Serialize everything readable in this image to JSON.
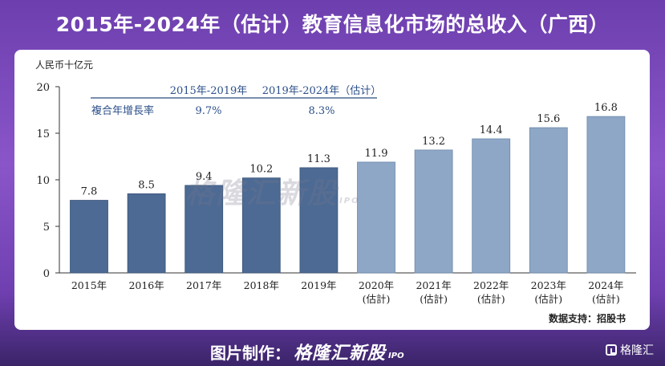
{
  "title": "2015年-2024年（估计）教育信息化市场的总收入（广西）",
  "unit_label": "人民币十亿元",
  "legend": {
    "period1": "2015年-2019年",
    "period2": "2019年-2024年（估计）",
    "row_label": "複合年增長率",
    "cagr1": "9.7%",
    "cagr2": "8.3%"
  },
  "watermark": "格隆汇新股",
  "watermark_ipo": "IPO",
  "source": "数据支持：招股书",
  "footer": {
    "prefix": "图片制作：",
    "brand": "格隆汇新股",
    "ipo": "IPO",
    "logo_text": "格隆汇"
  },
  "colors": {
    "actual": "#4c6a93",
    "estimate": "#8ea7c6"
  },
  "chart_data": {
    "type": "bar",
    "title": "2015年-2024年（估计）教育信息化市场的总收入（广西）",
    "ylabel": "人民币十亿元",
    "xlabel": "",
    "ylim": [
      0,
      20
    ],
    "yticks": [
      0,
      5,
      10,
      15,
      20
    ],
    "categories": [
      "2015年",
      "2016年",
      "2017年",
      "2018年",
      "2019年",
      "2020年",
      "2021年",
      "2022年",
      "2023年",
      "2024年"
    ],
    "category_sublabels": [
      "",
      "",
      "",
      "",
      "",
      "(估計)",
      "(估計)",
      "(估計)",
      "(估計)",
      "(估計)"
    ],
    "values": [
      7.8,
      8.5,
      9.4,
      10.2,
      11.3,
      11.9,
      13.2,
      14.4,
      15.6,
      16.8
    ],
    "value_labels": [
      "7.8",
      "8.5",
      "9.4",
      "10.2",
      "11.3",
      "11.9",
      "13.2",
      "14.4",
      "15.6",
      "16.8"
    ],
    "estimated": [
      false,
      false,
      false,
      false,
      false,
      true,
      true,
      true,
      true,
      true
    ]
  }
}
